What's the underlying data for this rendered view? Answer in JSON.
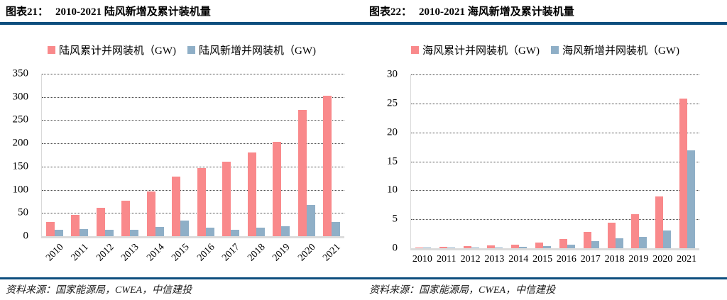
{
  "chart_data": [
    {
      "type": "bar",
      "panel": "onshore-wind",
      "caption_label": "图表21：",
      "title": "2010-2021 陆风新增及累计装机量",
      "categories": [
        "2010",
        "2011",
        "2012",
        "2013",
        "2014",
        "2015",
        "2016",
        "2017",
        "2018",
        "2019",
        "2020",
        "2021"
      ],
      "series": [
        {
          "name": "陆风累计并网装机（GW)",
          "color": "#f9898b",
          "values": [
            30,
            46,
            61,
            77,
            96,
            128,
            147,
            161,
            180,
            204,
            272,
            302
          ]
        },
        {
          "name": "陆风新增并网装机（GW)",
          "color": "#8fafc7",
          "values": [
            14,
            16,
            14,
            14,
            20,
            33,
            19,
            14,
            19,
            22,
            68,
            30
          ]
        }
      ],
      "ylim": [
        0,
        350
      ],
      "yticks": [
        0,
        50,
        100,
        150,
        200,
        250,
        300,
        350
      ],
      "grid": "horizontal-dotted",
      "legend_position": "top-center",
      "x_labels_rotated": true,
      "source": "资料来源：国家能源局，CWEA，中信建投"
    },
    {
      "type": "bar",
      "panel": "offshore-wind",
      "caption_label": "图表22：",
      "title": "2010-2021 海风新增及累计装机量",
      "categories": [
        "2010",
        "2011",
        "2012",
        "2013",
        "2014",
        "2015",
        "2016",
        "2017",
        "2018",
        "2019",
        "2020",
        "2021"
      ],
      "series": [
        {
          "name": "海风累计并网装机（GW)",
          "color": "#f9898b",
          "values": [
            0.15,
            0.25,
            0.4,
            0.45,
            0.66,
            1.0,
            1.6,
            2.8,
            4.4,
            5.9,
            9.0,
            25.8
          ]
        },
        {
          "name": "海风新增并网装机（GW)",
          "color": "#8fafc7",
          "values": [
            0.1,
            0.1,
            0.15,
            0.05,
            0.2,
            0.36,
            0.6,
            1.2,
            1.7,
            2.0,
            3.1,
            16.9
          ]
        }
      ],
      "ylim": [
        0,
        30
      ],
      "yticks": [
        0,
        5,
        10,
        15,
        20,
        25,
        30
      ],
      "grid": "horizontal-dotted",
      "legend_position": "top-center",
      "x_labels_rotated": false,
      "source": "资料来源：国家能源局，CWEA，中信建投"
    }
  ]
}
